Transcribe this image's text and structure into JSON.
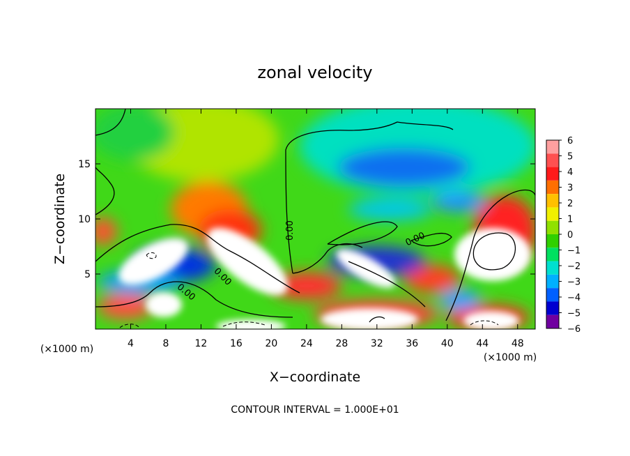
{
  "chart_data": {
    "type": "heatmap",
    "title": "zonal velocity",
    "xlabel": "X−coordinate",
    "ylabel": "Z−coordinate",
    "x_unit_label": "(×1000 m)",
    "y_unit_label": "(×1000 m)",
    "footer": "CONTOUR INTERVAL = 1.000E+01",
    "xlim": [
      0,
      50
    ],
    "ylim": [
      0,
      20
    ],
    "x_ticks": [
      4,
      8,
      12,
      16,
      20,
      24,
      28,
      32,
      36,
      40,
      44,
      48
    ],
    "y_ticks": [
      5,
      10,
      15
    ],
    "contour_labels": [
      "0.00",
      "0.00",
      "0.00",
      "0.00",
      "0.00"
    ],
    "colorbar": {
      "range": [
        -6,
        6
      ],
      "ticks": [
        6,
        5,
        4,
        3,
        2,
        1,
        0,
        -1,
        -2,
        -3,
        -4,
        -5,
        -6
      ],
      "colors": [
        "#ff9f9f",
        "#ff5050",
        "#ff1a1a",
        "#ff6f00",
        "#ffc000",
        "#f0f000",
        "#90e000",
        "#30d000",
        "#00e060",
        "#00e0d0",
        "#00b0ff",
        "#0060ff",
        "#0000d0",
        "#7000a0"
      ]
    },
    "features": [
      {
        "x": 1,
        "z": 9,
        "value": 5
      },
      {
        "x": 13,
        "z": 10.5,
        "value": 4
      },
      {
        "x": 15.5,
        "z": 17,
        "value": 1.5
      },
      {
        "x": 5,
        "z": 17,
        "value": 0
      },
      {
        "x": 34,
        "z": 14,
        "value": -4
      },
      {
        "x": 38,
        "z": 18.5,
        "value": -1
      },
      {
        "x": 41,
        "z": 12,
        "value": -3
      },
      {
        "x": 6,
        "z": 5.5,
        "value": 6
      },
      {
        "x": 17.5,
        "z": 6.5,
        "value": 6
      },
      {
        "x": 31,
        "z": 5.5,
        "value": 6
      },
      {
        "x": 45,
        "z": 7,
        "value": 6
      },
      {
        "x": 9,
        "z": 3.5,
        "value": -4
      },
      {
        "x": 8,
        "z": 2,
        "value": 6
      },
      {
        "x": 31,
        "z": 2,
        "value": 6
      },
      {
        "x": 47,
        "z": 1.5,
        "value": 6
      },
      {
        "x": 24,
        "z": 4,
        "value": 4
      },
      {
        "x": 38,
        "z": 6,
        "value": 4
      }
    ]
  }
}
